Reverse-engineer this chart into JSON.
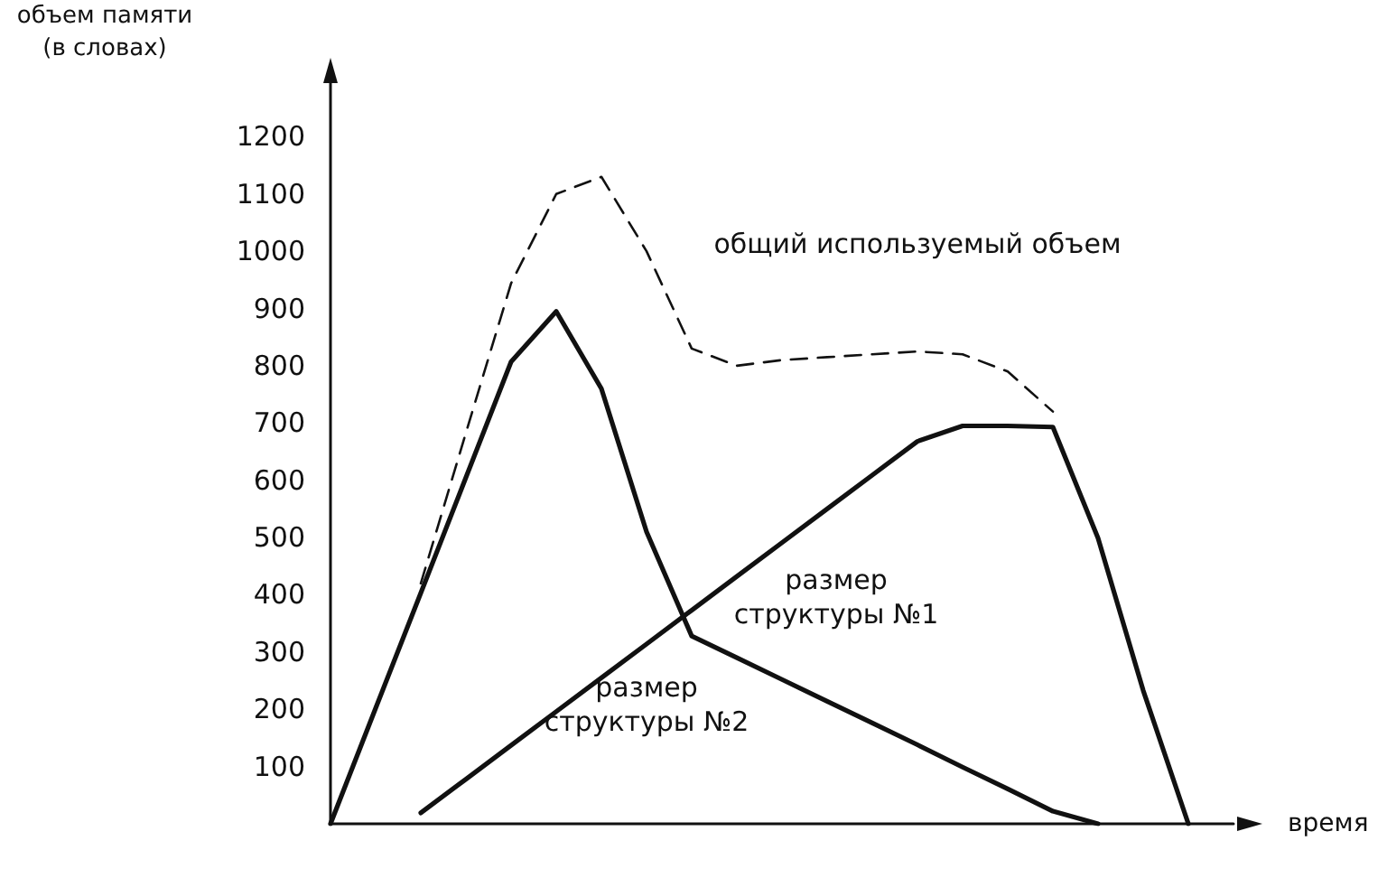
{
  "chart_data": {
    "type": "line",
    "ylabel": "объем памяти\n(в словах)",
    "xlabel": "время",
    "categories": [
      null,
      null,
      null,
      null,
      null,
      null,
      null,
      null,
      null,
      null,
      null,
      null,
      null,
      null,
      null,
      null,
      null,
      null,
      null,
      null,
      null
    ],
    "ylim": [
      0,
      1300
    ],
    "yticks": [
      100,
      200,
      300,
      400,
      500,
      600,
      700,
      800,
      900,
      1000,
      1100,
      1200
    ],
    "grid": false,
    "legend": false,
    "marker": "none",
    "series": [
      {
        "name": "размер структуры №2",
        "color": "#111111",
        "line_style": "solid",
        "values": [
          0,
          202,
          403,
          605,
          807,
          895,
          760,
          510,
          328,
          290,
          252,
          214,
          176,
          138,
          99,
          61,
          22,
          0,
          null,
          null,
          null
        ]
      },
      {
        "name": "размер структуры №1",
        "color": "#111111",
        "line_style": "solid",
        "values": [
          null,
          null,
          19,
          78,
          137,
          196,
          255,
          314,
          373,
          432,
          491,
          550,
          609,
          668,
          695,
          695,
          693,
          499,
          233,
          0,
          null
        ]
      },
      {
        "name": "общий используемый объем",
        "color": "#111111",
        "line_style": "dashed",
        "values": [
          null,
          null,
          420,
          683,
          944,
          1100,
          1130,
          1000,
          830,
          800,
          810,
          815,
          820,
          825,
          820,
          790,
          720,
          null,
          null,
          null,
          null
        ]
      }
    ]
  }
}
